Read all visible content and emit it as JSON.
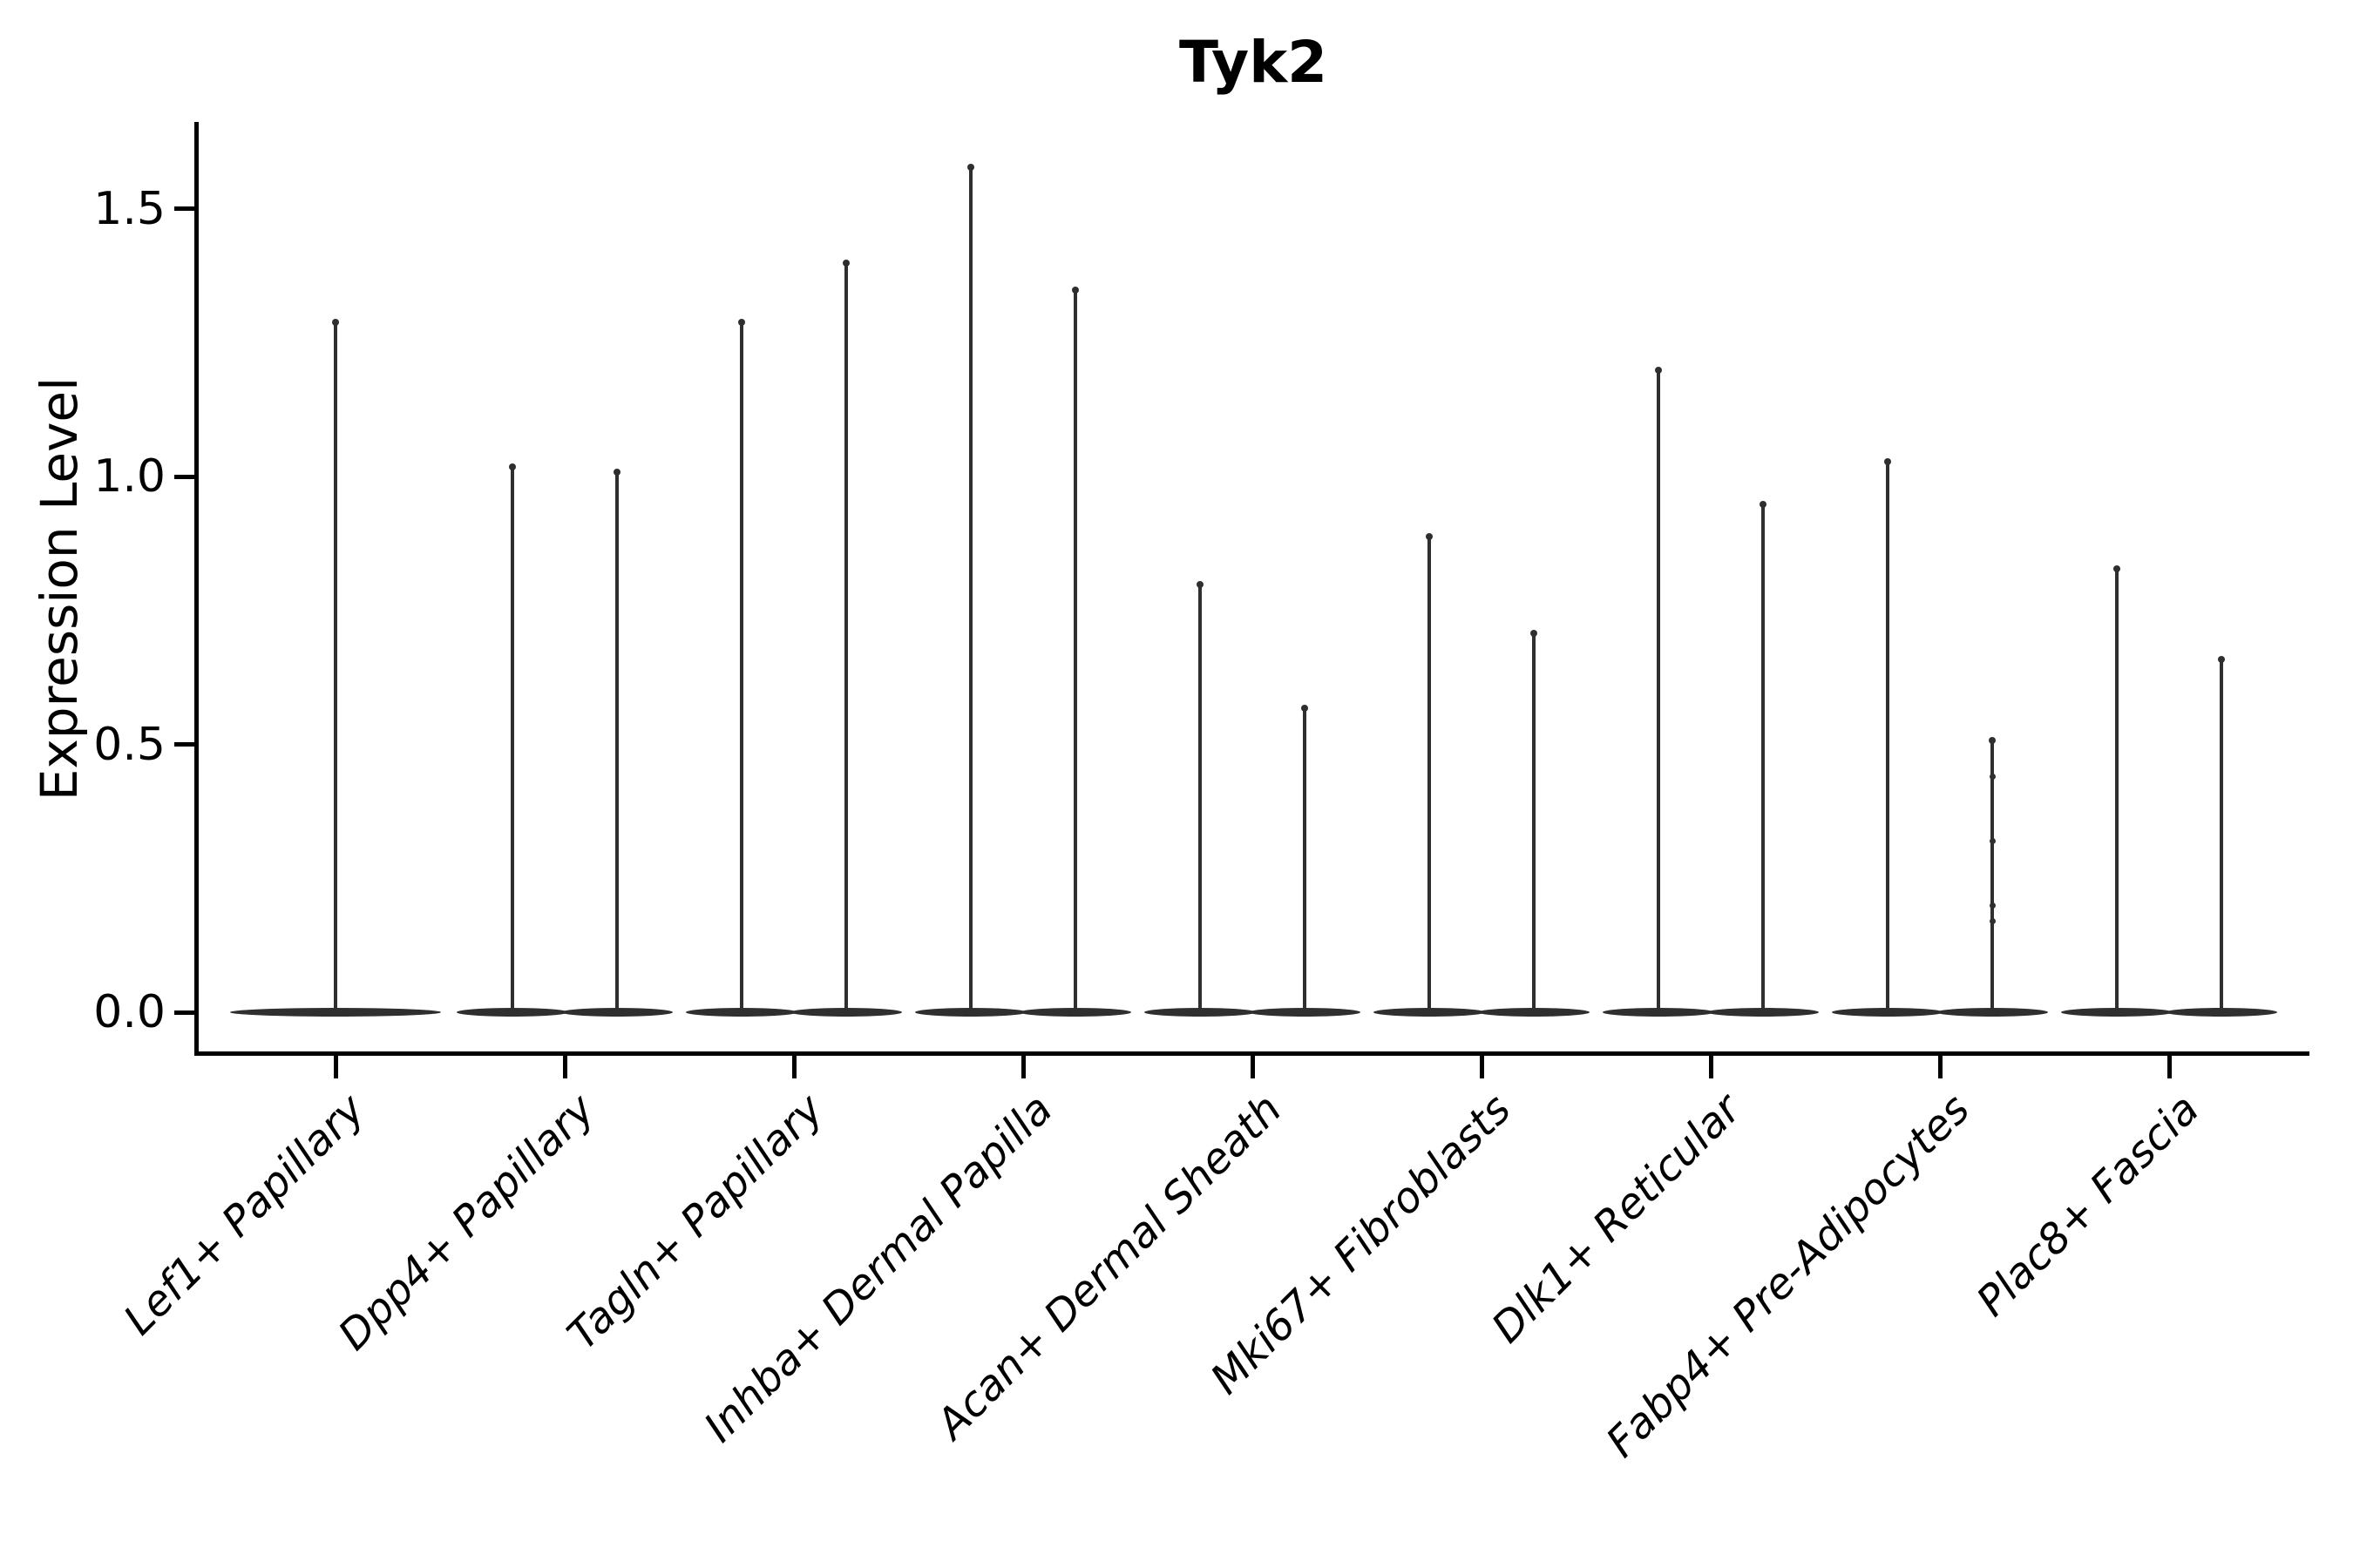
{
  "figure_title": "Tyk2",
  "y_axis": {
    "label": "Expression Level",
    "tick_labels": [
      "0.0",
      "0.5",
      "1.0",
      "1.5"
    ],
    "tick_values": [
      0.0,
      0.5,
      1.0,
      1.5
    ]
  },
  "colors": {
    "violin_fill": "#2f2f2f",
    "axis": "#000000",
    "text": "#000000",
    "background": "#ffffff"
  },
  "chart_data": {
    "type": "violin",
    "title": "Tyk2",
    "xlabel": "",
    "ylabel": "Expression Level",
    "ylim": [
      -0.08,
      1.66
    ],
    "yticks": [
      0.0,
      0.5,
      1.0,
      1.5
    ],
    "grid": false,
    "legend": "none",
    "x_tick_rotation_deg": 45,
    "x_tick_style": "italic",
    "note": "Single-cell gene expression violin plot for Tyk2. Each violin is needle-thin: the bulk of cells sit at expression 0 (wide flat base lens at y=0) with a hair-thin tail rising to the maximum expressing cell. Lef1+ Papillary shows one centered violin; all other cell types show two side-by-side violins.",
    "categories": [
      "Lef1+ Papillary",
      "Dpp4+ Papillary",
      "Tagln+ Papillary",
      "Inhba+ Dermal Papilla",
      "Acan+ Dermal Sheath",
      "Mki67+ Fibroblasts",
      "Dlk1+ Reticular",
      "Fabp4+ Pre-Adipocytes",
      "Plac8+ Fascia"
    ],
    "groups": [
      {
        "category": "Lef1+ Papillary",
        "violins": [
          {
            "pos": "center",
            "max": 1.29,
            "mode": 0.0
          }
        ]
      },
      {
        "category": "Dpp4+ Papillary",
        "violins": [
          {
            "pos": "left",
            "max": 1.02,
            "mode": 0.0
          },
          {
            "pos": "right",
            "max": 1.01,
            "mode": 0.0
          }
        ]
      },
      {
        "category": "Tagln+ Papillary",
        "violins": [
          {
            "pos": "left",
            "max": 1.29,
            "mode": 0.0
          },
          {
            "pos": "right",
            "max": 1.4,
            "mode": 0.0
          }
        ]
      },
      {
        "category": "Inhba+ Dermal Papilla",
        "violins": [
          {
            "pos": "left",
            "max": 1.58,
            "mode": 0.0
          },
          {
            "pos": "right",
            "max": 1.35,
            "mode": 0.0
          }
        ]
      },
      {
        "category": "Acan+ Dermal Sheath",
        "violins": [
          {
            "pos": "left",
            "max": 0.8,
            "mode": 0.0
          },
          {
            "pos": "right",
            "max": 0.57,
            "mode": 0.0
          }
        ]
      },
      {
        "category": "Mki67+ Fibroblasts",
        "violins": [
          {
            "pos": "left",
            "max": 0.89,
            "mode": 0.0
          },
          {
            "pos": "right",
            "max": 0.71,
            "mode": 0.0
          }
        ]
      },
      {
        "category": "Dlk1+ Reticular",
        "violins": [
          {
            "pos": "left",
            "max": 1.2,
            "mode": 0.0
          },
          {
            "pos": "right",
            "max": 0.95,
            "mode": 0.0
          }
        ]
      },
      {
        "category": "Fabp4+ Pre-Adipocytes",
        "violins": [
          {
            "pos": "left",
            "max": 1.03,
            "mode": 0.0
          },
          {
            "pos": "right",
            "max": 0.51,
            "mode": 0.0,
            "point_values": [
              0.44,
              0.32,
              0.2,
              0.17
            ]
          }
        ]
      },
      {
        "category": "Plac8+ Fascia",
        "violins": [
          {
            "pos": "left",
            "max": 0.83,
            "mode": 0.0
          },
          {
            "pos": "right",
            "max": 0.66,
            "mode": 0.0
          }
        ]
      }
    ]
  }
}
